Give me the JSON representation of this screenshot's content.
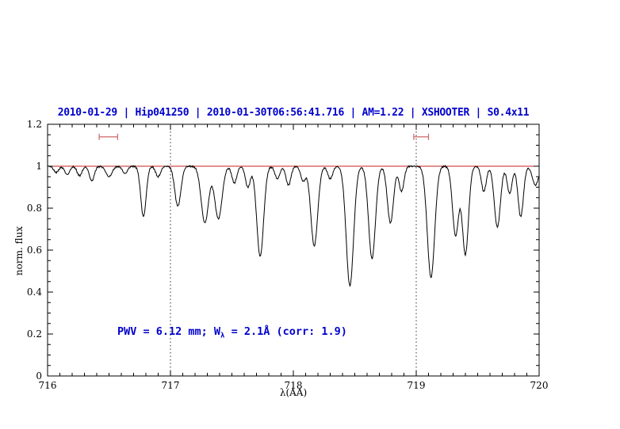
{
  "colors": {
    "title": "#0000cc",
    "annotation": "#0000cc",
    "continuum": "#cc2222",
    "marker": "#cc6666",
    "spectrum": "#000000",
    "axis": "#000000"
  },
  "annotation": {
    "part1": "PWV = 6.12 mm; W",
    "sub": "λ",
    "part2": " = 2.1Å (corr: 1.9)"
  },
  "chart_data": {
    "type": "line",
    "title": "2010-01-29 | Hip041250 | 2010-01-30T06:56:41.716 | AM=1.22 | XSHOOTER | S0.4x11",
    "xlabel": "λ(AA)",
    "ylabel": "norm. flux",
    "xlim": [
      716,
      720
    ],
    "ylim": [
      0,
      1.2
    ],
    "x_ticks": [
      716,
      717,
      718,
      719,
      720
    ],
    "x_tick_labels": [
      "716",
      "717",
      "718",
      "719",
      "720"
    ],
    "y_ticks": [
      0,
      0.2,
      0.4,
      0.6,
      0.8,
      1.0,
      1.2
    ],
    "y_tick_labels": [
      "0",
      "0.2",
      "0.4",
      "0.6",
      "0.8",
      "1",
      "1.2"
    ],
    "grid": false,
    "legend": null,
    "dotted_vlines": [
      717,
      719
    ],
    "continuum_line": {
      "y": 1.0
    },
    "range_markers": [
      {
        "x1": 716.42,
        "x2": 716.57,
        "y": 1.14
      },
      {
        "x1": 718.98,
        "x2": 719.1,
        "y": 1.14
      }
    ],
    "continuum": 1.0,
    "sampling_step": 0.004,
    "noise_amplitude": 0.005,
    "absorption_lines": [
      {
        "center": 716.07,
        "depth": 0.03,
        "sigma": 0.02
      },
      {
        "center": 716.16,
        "depth": 0.04,
        "sigma": 0.02
      },
      {
        "center": 716.26,
        "depth": 0.045,
        "sigma": 0.02
      },
      {
        "center": 716.36,
        "depth": 0.07,
        "sigma": 0.02
      },
      {
        "center": 716.5,
        "depth": 0.05,
        "sigma": 0.025
      },
      {
        "center": 716.63,
        "depth": 0.035,
        "sigma": 0.02
      },
      {
        "center": 716.78,
        "depth": 0.24,
        "sigma": 0.022
      },
      {
        "center": 716.9,
        "depth": 0.05,
        "sigma": 0.02
      },
      {
        "center": 717.06,
        "depth": 0.19,
        "sigma": 0.025
      },
      {
        "center": 717.28,
        "depth": 0.27,
        "sigma": 0.03
      },
      {
        "center": 717.39,
        "depth": 0.25,
        "sigma": 0.03
      },
      {
        "center": 717.52,
        "depth": 0.08,
        "sigma": 0.02
      },
      {
        "center": 717.63,
        "depth": 0.1,
        "sigma": 0.02
      },
      {
        "center": 717.73,
        "depth": 0.43,
        "sigma": 0.028
      },
      {
        "center": 717.87,
        "depth": 0.06,
        "sigma": 0.02
      },
      {
        "center": 717.96,
        "depth": 0.09,
        "sigma": 0.02
      },
      {
        "center": 718.08,
        "depth": 0.07,
        "sigma": 0.02
      },
      {
        "center": 718.17,
        "depth": 0.38,
        "sigma": 0.028
      },
      {
        "center": 718.3,
        "depth": 0.06,
        "sigma": 0.02
      },
      {
        "center": 718.46,
        "depth": 0.57,
        "sigma": 0.03
      },
      {
        "center": 718.64,
        "depth": 0.44,
        "sigma": 0.028
      },
      {
        "center": 718.79,
        "depth": 0.27,
        "sigma": 0.025
      },
      {
        "center": 718.88,
        "depth": 0.12,
        "sigma": 0.02
      },
      {
        "center": 719.12,
        "depth": 0.53,
        "sigma": 0.03
      },
      {
        "center": 719.32,
        "depth": 0.33,
        "sigma": 0.025
      },
      {
        "center": 719.4,
        "depth": 0.42,
        "sigma": 0.025
      },
      {
        "center": 719.55,
        "depth": 0.12,
        "sigma": 0.02
      },
      {
        "center": 719.66,
        "depth": 0.29,
        "sigma": 0.025
      },
      {
        "center": 719.76,
        "depth": 0.13,
        "sigma": 0.02
      },
      {
        "center": 719.85,
        "depth": 0.24,
        "sigma": 0.022
      },
      {
        "center": 719.97,
        "depth": 0.09,
        "sigma": 0.025
      }
    ]
  }
}
